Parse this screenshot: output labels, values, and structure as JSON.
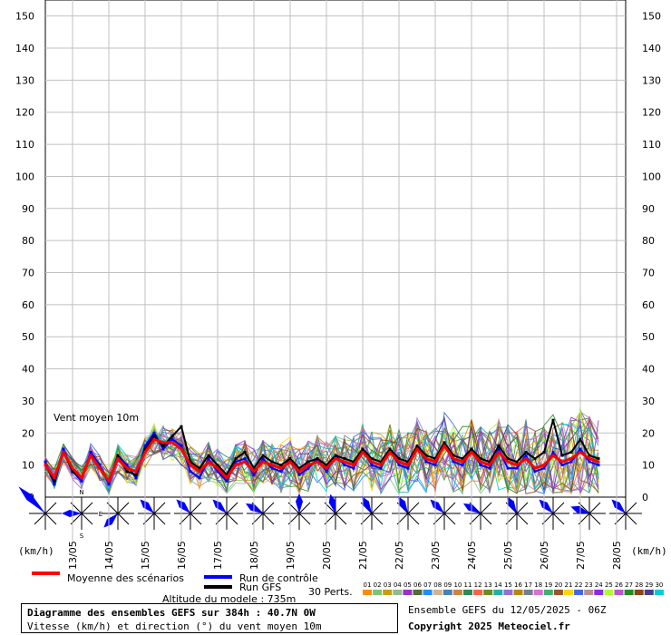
{
  "chart_data": {
    "type": "line",
    "title": "Diagramme des ensembles GEFS sur 384h : 40.7N 0W",
    "subtitle": "Vitesse (km/h) et direction (°) du vent moyen 10m",
    "ylabel": "Vent moyen 10m",
    "yunit": "(km/h)",
    "ylim": [
      0,
      155
    ],
    "yticks": [
      0,
      10,
      20,
      30,
      40,
      50,
      60,
      70,
      80,
      90,
      100,
      110,
      120,
      130,
      140,
      150
    ],
    "xlim": [
      0,
      384
    ],
    "step_hours": 6,
    "date_labels": [
      "13/05",
      "14/05",
      "15/05",
      "16/05",
      "17/05",
      "18/05",
      "19/05",
      "20/05",
      "21/05",
      "22/05",
      "23/05",
      "24/05",
      "25/05",
      "26/05",
      "27/05",
      "28/05"
    ],
    "date_label_hours": [
      18,
      42,
      66,
      90,
      114,
      138,
      162,
      186,
      210,
      234,
      258,
      282,
      306,
      330,
      354,
      378
    ],
    "grid": true,
    "series": [
      {
        "name": "Moyenne des scénarios",
        "color": "#ff0000",
        "values": [
          10,
          6,
          14,
          9,
          6,
          13,
          9,
          5,
          12,
          9,
          8,
          14,
          18,
          17,
          17,
          15,
          10,
          8,
          11,
          9,
          6,
          10,
          11,
          8,
          11,
          10,
          9,
          11,
          8,
          10,
          11,
          9,
          12,
          11,
          10,
          14,
          11,
          10,
          14,
          11,
          10,
          15,
          12,
          11,
          16,
          12,
          11,
          14,
          11,
          10,
          14,
          11,
          10,
          12,
          9,
          10,
          13,
          11,
          12,
          14,
          12,
          11
        ]
      },
      {
        "name": "Run de contrôle",
        "color": "#0000ff",
        "values": [
          11,
          4,
          15,
          8,
          5,
          14,
          10,
          4,
          13,
          10,
          6,
          16,
          20,
          15,
          18,
          16,
          8,
          6,
          12,
          8,
          5,
          11,
          12,
          7,
          12,
          9,
          8,
          12,
          7,
          9,
          12,
          8,
          13,
          10,
          9,
          15,
          10,
          9,
          15,
          10,
          9,
          16,
          11,
          10,
          17,
          11,
          10,
          15,
          10,
          9,
          15,
          9,
          9,
          13,
          8,
          9,
          14,
          10,
          11,
          15,
          11,
          10
        ]
      },
      {
        "name": "Run GFS",
        "color": "#000000",
        "values": [
          10,
          5,
          14,
          8,
          6,
          13,
          9,
          5,
          13,
          8,
          7,
          15,
          19,
          16,
          19,
          22,
          11,
          9,
          13,
          10,
          7,
          12,
          14,
          9,
          13,
          11,
          10,
          12,
          9,
          11,
          12,
          10,
          13,
          12,
          11,
          15,
          12,
          11,
          15,
          12,
          11,
          16,
          13,
          12,
          17,
          13,
          12,
          15,
          12,
          11,
          16,
          12,
          11,
          14,
          12,
          14,
          24,
          13,
          14,
          18,
          13,
          12
        ]
      }
    ],
    "perturbations": {
      "count": 30,
      "label": "30 Perts.",
      "numbers": [
        "01",
        "02",
        "03",
        "04",
        "05",
        "06",
        "07",
        "08",
        "09",
        "10",
        "11",
        "12",
        "13",
        "14",
        "15",
        "16",
        "17",
        "18",
        "19",
        "20",
        "21",
        "22",
        "23",
        "24",
        "25",
        "26",
        "27",
        "28",
        "29",
        "30"
      ],
      "colors": [
        "#ff8c00",
        "#7cc576",
        "#c8a000",
        "#8fbc8f",
        "#9932cc",
        "#556b2f",
        "#1e90ff",
        "#d2b48c",
        "#4682b4",
        "#cd853f",
        "#2e8b57",
        "#ff6347",
        "#6b8e23",
        "#20b2aa",
        "#9370db",
        "#b8860b",
        "#708090",
        "#da70d6",
        "#3cb371",
        "#a0522d",
        "#ffd700",
        "#4169e1",
        "#bc8f8f",
        "#8a2be2",
        "#adff2f",
        "#ba55d3",
        "#228b22",
        "#8b4513",
        "#483d8b",
        "#00ced1"
      ]
    },
    "wind_roses": {
      "compass_labels": {
        "n": "N",
        "s": "S",
        "e": "E"
      },
      "directions_deg": [
        315,
        270,
        225,
        315,
        315,
        315,
        300,
        0,
        345,
        330,
        330,
        315,
        300,
        330,
        315,
        290,
        315
      ],
      "color": "#0000ff"
    }
  },
  "labels": {
    "y_unit_left": "(km/h)",
    "y_unit_right": "(km/h)",
    "var_label": "Vent moyen 10m",
    "legend_mean": "Moyenne des scénarios",
    "legend_control": "Run de contrôle",
    "legend_gfs": "Run GFS",
    "altitude": "Altitude du modele : 735m",
    "perts": "30 Perts.",
    "info_title": "Diagramme des ensembles GEFS sur 384h : 40.7N 0W",
    "info_sub": "Vitesse (km/h) et direction (°) du vent moyen 10m",
    "run_label": "Ensemble GEFS du 12/05/2025 - 06Z",
    "copyright": "Copyright 2025 Meteociel.fr"
  }
}
